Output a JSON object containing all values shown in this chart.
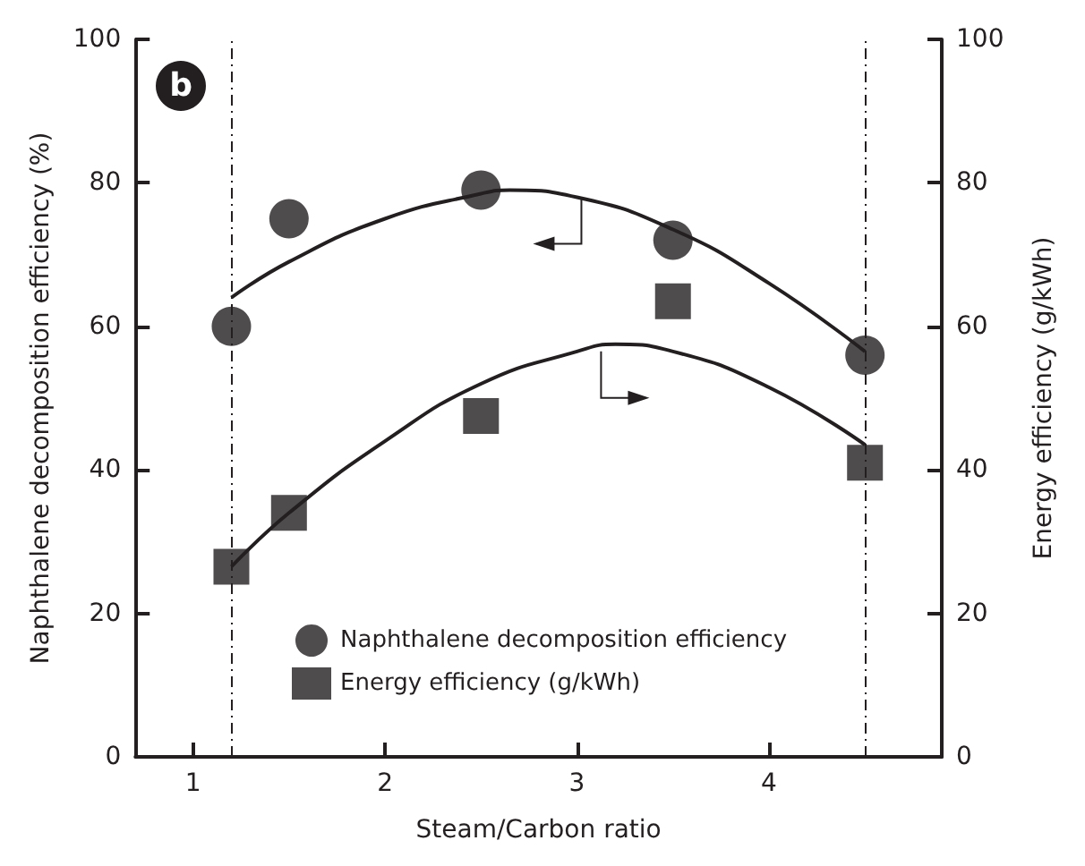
{
  "chart_data": {
    "type": "scatter",
    "xlabel": "Steam/Carbon ratio",
    "ylabel": "Naphthalene decomposition efficiency (%)",
    "y2label": "Energy efficiency (g/kWh)",
    "annotations": [
      "b"
    ],
    "xlim": [
      0.7,
      4.9
    ],
    "xticks": [
      1,
      2,
      3,
      4
    ],
    "ylim": [
      0,
      100
    ],
    "yticks": [
      0,
      20,
      40,
      60,
      80,
      100
    ],
    "y2lim": [
      0,
      100
    ],
    "y2ticks": [
      0,
      20,
      40,
      60,
      80,
      100
    ],
    "grid": false,
    "legend": "bottom left",
    "ref_lines": [
      {
        "axis": "x",
        "value": 1.2,
        "line_style": "dashed",
        "color": "#231f20"
      },
      {
        "axis": "x",
        "value": 4.5,
        "line_style": "dashed",
        "color": "#231f20"
      }
    ],
    "series": [
      {
        "name": "Naphthalene decomposition efficiency",
        "color": "#231f20",
        "marker": "circle",
        "x": [
          1.2,
          1.5,
          2.5,
          3.5,
          4.5
        ],
        "values": [
          60,
          75,
          79,
          72,
          56
        ]
      },
      {
        "name": "Energy efficiency (g/kWh)",
        "color": "#231f20",
        "marker": "square",
        "axis": "y2",
        "x": [
          1.2,
          1.5,
          2.5,
          3.5,
          4.5
        ],
        "values": [
          26.5,
          34,
          47.5,
          63.5,
          41
        ]
      },
      {
        "type": "line",
        "color": "#231f20",
        "marker": "none",
        "x": [
          1.2,
          1.5,
          2,
          2.5,
          2.65,
          3,
          3.5,
          4,
          4.5
        ],
        "values": [
          64,
          69,
          75,
          78.5,
          79,
          78,
          73.5,
          66,
          56.5
        ]
      },
      {
        "type": "line",
        "color": "#231f20",
        "marker": "none",
        "axis": "y2",
        "x": [
          1.2,
          1.5,
          2,
          2.5,
          3,
          3.2,
          3.5,
          4,
          4.5
        ],
        "values": [
          26.5,
          34,
          44,
          52,
          56.5,
          57.5,
          56.5,
          51.5,
          43.5
        ]
      }
    ]
  }
}
